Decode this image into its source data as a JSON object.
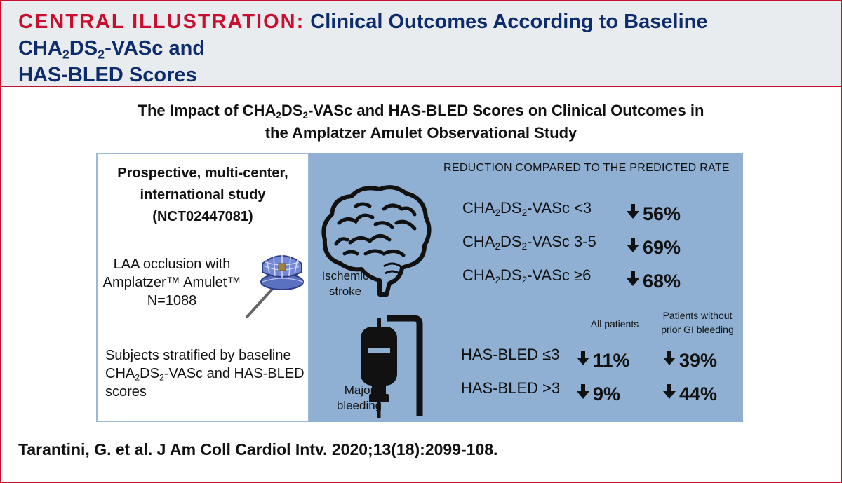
{
  "header": {
    "prefix": "CENTRAL ILLUSTRATION:",
    "title_part1": "Clinical Outcomes According to Baseline",
    "title_part2_a": "CHA",
    "title_part2_sub1": "2",
    "title_part2_b": "DS",
    "title_part2_sub2": "2",
    "title_part2_c": "-VASc and",
    "title_part3": "HAS-BLED Scores"
  },
  "subtitle": {
    "line1_a": "The Impact of CHA",
    "line1_sub1": "2",
    "line1_b": "DS",
    "line1_sub2": "2",
    "line1_c": "-VASc and HAS-BLED Scores on Clinical Outcomes in",
    "line2": "the Amplatzer Amulet Observational Study"
  },
  "left_panel": {
    "study_line1": "Prospective, multi-center,",
    "study_line2": "international study",
    "study_line3": "(NCT02447081)",
    "laa_line1": "LAA occlusion with",
    "laa_line2": "Amplatzer™ Amulet™",
    "laa_line3": "N=1088",
    "strat_line1": "Subjects stratified by baseline",
    "strat_line2_a": "CHA",
    "strat_line2_sub1": "2",
    "strat_line2_b": "DS",
    "strat_line2_sub2": "2",
    "strat_line2_c": "-VASc and HAS-BLED",
    "strat_line3": "scores"
  },
  "right_panel": {
    "reduction_heading": "REDUCTION COMPARED TO THE PREDICTED RATE",
    "stroke_caption_line1": "Ischemic",
    "stroke_caption_line2": "stroke",
    "bleed_caption_line1": "Major",
    "bleed_caption_line2": "bleeding",
    "stroke_rows": [
      {
        "label_a": "CHA",
        "sub1": "2",
        "label_b": "DS",
        "sub2": "2",
        "label_c": "-VASc <3",
        "value": "56%"
      },
      {
        "label_a": "CHA",
        "sub1": "2",
        "label_b": "DS",
        "sub2": "2",
        "label_c": "-VASc 3-5",
        "value": "69%"
      },
      {
        "label_a": "CHA",
        "sub1": "2",
        "label_b": "DS",
        "sub2": "2",
        "label_c": "-VASc ≥6",
        "value": "68%"
      }
    ],
    "col_all": "All patients",
    "col_nogi_line1": "Patients without",
    "col_nogi_line2": "prior GI bleeding",
    "bleed_rows": [
      {
        "label": "HAS-BLED ≤3",
        "all": "11%",
        "nogi": "39%"
      },
      {
        "label": "HAS-BLED >3",
        "all": "9%",
        "nogi": "44%"
      }
    ]
  },
  "citation": "Tarantini, G. et al. J Am Coll Cardiol Intv. 2020;13(18):2099-108.",
  "colors": {
    "accent_red": "#c8102e",
    "navy": "#0d2c6b",
    "panel_blue": "#8fb0d3"
  },
  "icons": [
    "brain-icon",
    "iv-bag-icon",
    "amulet-device-icon",
    "down-arrow-icon"
  ]
}
